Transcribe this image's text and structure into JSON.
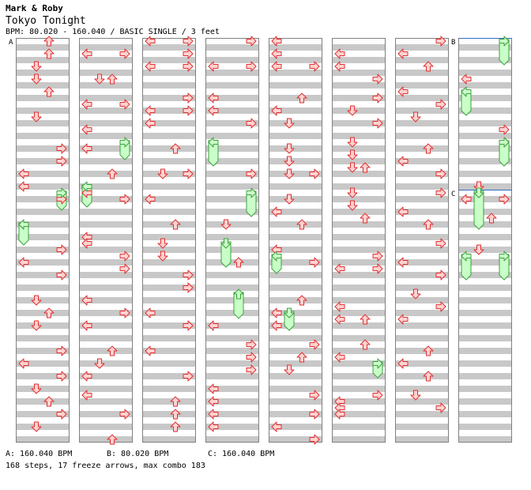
{
  "header": {
    "artist": "Mark & Roby",
    "title": "Tokyo Tonight",
    "bpm_line": "BPM: 80.020 - 160.040 / BASIC SINGLE / 3 feet"
  },
  "markers": [
    {
      "label": "A",
      "column": 0,
      "measure": 0
    },
    {
      "label": "B",
      "column": 7,
      "measure": 0
    },
    {
      "label": "C",
      "column": 7,
      "measure": 3
    }
  ],
  "legend": {
    "a": "A: 160.040 BPM",
    "b": "B: 80.020 BPM",
    "c": "C: 160.040 BPM"
  },
  "stats": "168 steps, 17 freeze arrows, max combo 183",
  "colors": {
    "band": "#c8c8c8",
    "arrow_fill": "#ffd2d2",
    "arrow_stroke": "#e03030",
    "freeze_fill": "#c8ffc8",
    "freeze_stroke": "#40a040",
    "marker_line": "#3070c0"
  },
  "notes": [
    {
      "c": 0,
      "m": 0,
      "b": 0,
      "d": "U"
    },
    {
      "c": 0,
      "m": 0,
      "b": 2,
      "d": "U"
    },
    {
      "c": 0,
      "m": 0,
      "b": 4,
      "d": "D"
    },
    {
      "c": 0,
      "m": 0,
      "b": 6,
      "d": "D"
    },
    {
      "c": 0,
      "m": 1,
      "b": 0,
      "d": "U"
    },
    {
      "c": 0,
      "m": 1,
      "b": 4,
      "d": "D"
    },
    {
      "c": 0,
      "m": 2,
      "b": 1,
      "d": "R"
    },
    {
      "c": 0,
      "m": 2,
      "b": 3,
      "d": "R"
    },
    {
      "c": 0,
      "m": 2,
      "b": 5,
      "d": "L"
    },
    {
      "c": 0,
      "m": 2,
      "b": 7,
      "d": "L"
    },
    {
      "c": 0,
      "m": 3,
      "b": 1,
      "d": "R"
    },
    {
      "c": 0,
      "m": 3,
      "b": 5,
      "d": "L"
    },
    {
      "c": 0,
      "m": 4,
      "b": 1,
      "d": "R"
    },
    {
      "c": 0,
      "m": 4,
      "b": 3,
      "d": "L"
    },
    {
      "c": 0,
      "m": 4,
      "b": 5,
      "d": "R"
    },
    {
      "c": 0,
      "m": 5,
      "b": 1,
      "d": "D"
    },
    {
      "c": 0,
      "m": 5,
      "b": 3,
      "d": "U"
    },
    {
      "c": 0,
      "m": 5,
      "b": 5,
      "d": "D"
    },
    {
      "c": 0,
      "m": 6,
      "b": 1,
      "d": "R"
    },
    {
      "c": 0,
      "m": 6,
      "b": 3,
      "d": "L"
    },
    {
      "c": 0,
      "m": 6,
      "b": 5,
      "d": "R"
    },
    {
      "c": 0,
      "m": 6,
      "b": 7,
      "d": "D"
    },
    {
      "c": 0,
      "m": 7,
      "b": 1,
      "d": "U"
    },
    {
      "c": 0,
      "m": 7,
      "b": 3,
      "d": "R"
    },
    {
      "c": 0,
      "m": 7,
      "b": 5,
      "d": "D"
    },
    {
      "c": 1,
      "m": 0,
      "b": 2,
      "d": "L"
    },
    {
      "c": 1,
      "m": 0,
      "b": 2,
      "d": "R"
    },
    {
      "c": 1,
      "m": 0,
      "b": 6,
      "d": "D"
    },
    {
      "c": 1,
      "m": 0,
      "b": 6,
      "d": "U"
    },
    {
      "c": 1,
      "m": 1,
      "b": 2,
      "d": "L"
    },
    {
      "c": 1,
      "m": 1,
      "b": 2,
      "d": "R"
    },
    {
      "c": 1,
      "m": 1,
      "b": 6,
      "d": "L"
    },
    {
      "c": 1,
      "m": 2,
      "b": 1,
      "d": "L"
    },
    {
      "c": 1,
      "m": 2,
      "b": 5,
      "d": "U"
    },
    {
      "c": 1,
      "m": 3,
      "b": 0,
      "d": "L"
    },
    {
      "c": 1,
      "m": 3,
      "b": 1,
      "d": "R"
    },
    {
      "c": 1,
      "m": 3,
      "b": 7,
      "d": "L"
    },
    {
      "c": 1,
      "m": 4,
      "b": 0,
      "d": "L"
    },
    {
      "c": 1,
      "m": 4,
      "b": 2,
      "d": "R"
    },
    {
      "c": 1,
      "m": 4,
      "b": 4,
      "d": "R"
    },
    {
      "c": 1,
      "m": 5,
      "b": 1,
      "d": "L"
    },
    {
      "c": 1,
      "m": 5,
      "b": 3,
      "d": "R"
    },
    {
      "c": 1,
      "m": 5,
      "b": 5,
      "d": "L"
    },
    {
      "c": 1,
      "m": 6,
      "b": 1,
      "d": "U"
    },
    {
      "c": 1,
      "m": 6,
      "b": 3,
      "d": "D"
    },
    {
      "c": 1,
      "m": 6,
      "b": 5,
      "d": "L"
    },
    {
      "c": 1,
      "m": 7,
      "b": 0,
      "d": "L"
    },
    {
      "c": 1,
      "m": 7,
      "b": 3,
      "d": "R"
    },
    {
      "c": 1,
      "m": 7,
      "b": 7,
      "d": "U"
    },
    {
      "c": 2,
      "m": 0,
      "b": 0,
      "d": "L"
    },
    {
      "c": 2,
      "m": 0,
      "b": 0,
      "d": "R"
    },
    {
      "c": 2,
      "m": 0,
      "b": 2,
      "d": "R"
    },
    {
      "c": 2,
      "m": 0,
      "b": 4,
      "d": "L"
    },
    {
      "c": 2,
      "m": 0,
      "b": 4,
      "d": "R"
    },
    {
      "c": 2,
      "m": 1,
      "b": 1,
      "d": "R"
    },
    {
      "c": 2,
      "m": 1,
      "b": 3,
      "d": "L"
    },
    {
      "c": 2,
      "m": 1,
      "b": 3,
      "d": "R"
    },
    {
      "c": 2,
      "m": 1,
      "b": 5,
      "d": "L"
    },
    {
      "c": 2,
      "m": 2,
      "b": 1,
      "d": "U"
    },
    {
      "c": 2,
      "m": 2,
      "b": 5,
      "d": "D"
    },
    {
      "c": 2,
      "m": 2,
      "b": 5,
      "d": "R"
    },
    {
      "c": 2,
      "m": 3,
      "b": 1,
      "d": "L"
    },
    {
      "c": 2,
      "m": 3,
      "b": 5,
      "d": "U"
    },
    {
      "c": 2,
      "m": 4,
      "b": 0,
      "d": "D"
    },
    {
      "c": 2,
      "m": 4,
      "b": 2,
      "d": "D"
    },
    {
      "c": 2,
      "m": 4,
      "b": 5,
      "d": "R"
    },
    {
      "c": 2,
      "m": 4,
      "b": 7,
      "d": "R"
    },
    {
      "c": 2,
      "m": 5,
      "b": 3,
      "d": "L"
    },
    {
      "c": 2,
      "m": 5,
      "b": 5,
      "d": "R"
    },
    {
      "c": 2,
      "m": 6,
      "b": 1,
      "d": "L"
    },
    {
      "c": 2,
      "m": 6,
      "b": 5,
      "d": "R"
    },
    {
      "c": 2,
      "m": 7,
      "b": 1,
      "d": "U"
    },
    {
      "c": 2,
      "m": 7,
      "b": 3,
      "d": "U"
    },
    {
      "c": 2,
      "m": 7,
      "b": 5,
      "d": "U"
    },
    {
      "c": 3,
      "m": 0,
      "b": 0,
      "d": "R"
    },
    {
      "c": 3,
      "m": 0,
      "b": 4,
      "d": "L"
    },
    {
      "c": 3,
      "m": 0,
      "b": 4,
      "d": "R"
    },
    {
      "c": 3,
      "m": 1,
      "b": 1,
      "d": "L"
    },
    {
      "c": 3,
      "m": 1,
      "b": 3,
      "d": "L"
    },
    {
      "c": 3,
      "m": 1,
      "b": 5,
      "d": "R"
    },
    {
      "c": 3,
      "m": 2,
      "b": 5,
      "d": "R"
    },
    {
      "c": 3,
      "m": 3,
      "b": 5,
      "d": "D"
    },
    {
      "c": 3,
      "m": 4,
      "b": 3,
      "d": "U"
    },
    {
      "c": 3,
      "m": 5,
      "b": 5,
      "d": "L"
    },
    {
      "c": 3,
      "m": 6,
      "b": 0,
      "d": "R"
    },
    {
      "c": 3,
      "m": 6,
      "b": 2,
      "d": "R"
    },
    {
      "c": 3,
      "m": 6,
      "b": 4,
      "d": "R"
    },
    {
      "c": 3,
      "m": 6,
      "b": 7,
      "d": "L"
    },
    {
      "c": 3,
      "m": 7,
      "b": 1,
      "d": "L"
    },
    {
      "c": 3,
      "m": 7,
      "b": 3,
      "d": "L"
    },
    {
      "c": 3,
      "m": 7,
      "b": 5,
      "d": "L"
    },
    {
      "c": 4,
      "m": 0,
      "b": 0,
      "d": "L"
    },
    {
      "c": 4,
      "m": 0,
      "b": 2,
      "d": "L"
    },
    {
      "c": 4,
      "m": 0,
      "b": 4,
      "d": "L"
    },
    {
      "c": 4,
      "m": 0,
      "b": 4,
      "d": "R"
    },
    {
      "c": 4,
      "m": 1,
      "b": 1,
      "d": "U"
    },
    {
      "c": 4,
      "m": 1,
      "b": 3,
      "d": "L"
    },
    {
      "c": 4,
      "m": 1,
      "b": 5,
      "d": "D"
    },
    {
      "c": 4,
      "m": 2,
      "b": 1,
      "d": "D"
    },
    {
      "c": 4,
      "m": 2,
      "b": 3,
      "d": "D"
    },
    {
      "c": 4,
      "m": 2,
      "b": 5,
      "d": "D"
    },
    {
      "c": 4,
      "m": 2,
      "b": 5,
      "d": "R"
    },
    {
      "c": 4,
      "m": 3,
      "b": 1,
      "d": "D"
    },
    {
      "c": 4,
      "m": 3,
      "b": 3,
      "d": "L"
    },
    {
      "c": 4,
      "m": 3,
      "b": 5,
      "d": "U"
    },
    {
      "c": 4,
      "m": 4,
      "b": 1,
      "d": "L"
    },
    {
      "c": 4,
      "m": 4,
      "b": 3,
      "d": "R"
    },
    {
      "c": 4,
      "m": 5,
      "b": 1,
      "d": "U"
    },
    {
      "c": 4,
      "m": 5,
      "b": 3,
      "d": "L"
    },
    {
      "c": 4,
      "m": 5,
      "b": 5,
      "d": "L"
    },
    {
      "c": 4,
      "m": 6,
      "b": 0,
      "d": "R"
    },
    {
      "c": 4,
      "m": 6,
      "b": 2,
      "d": "U"
    },
    {
      "c": 4,
      "m": 6,
      "b": 4,
      "d": "D"
    },
    {
      "c": 4,
      "m": 7,
      "b": 0,
      "d": "R"
    },
    {
      "c": 4,
      "m": 7,
      "b": 3,
      "d": "R"
    },
    {
      "c": 4,
      "m": 7,
      "b": 5,
      "d": "L"
    },
    {
      "c": 4,
      "m": 7,
      "b": 7,
      "d": "R"
    },
    {
      "c": 5,
      "m": 0,
      "b": 2,
      "d": "L"
    },
    {
      "c": 5,
      "m": 0,
      "b": 4,
      "d": "L"
    },
    {
      "c": 5,
      "m": 0,
      "b": 6,
      "d": "R"
    },
    {
      "c": 5,
      "m": 1,
      "b": 1,
      "d": "R"
    },
    {
      "c": 5,
      "m": 1,
      "b": 3,
      "d": "D"
    },
    {
      "c": 5,
      "m": 1,
      "b": 5,
      "d": "R"
    },
    {
      "c": 5,
      "m": 2,
      "b": 0,
      "d": "D"
    },
    {
      "c": 5,
      "m": 2,
      "b": 2,
      "d": "D"
    },
    {
      "c": 5,
      "m": 2,
      "b": 4,
      "d": "D"
    },
    {
      "c": 5,
      "m": 2,
      "b": 4,
      "d": "U"
    },
    {
      "c": 5,
      "m": 3,
      "b": 0,
      "d": "D"
    },
    {
      "c": 5,
      "m": 3,
      "b": 2,
      "d": "D"
    },
    {
      "c": 5,
      "m": 3,
      "b": 4,
      "d": "U"
    },
    {
      "c": 5,
      "m": 4,
      "b": 2,
      "d": "R"
    },
    {
      "c": 5,
      "m": 4,
      "b": 4,
      "d": "L"
    },
    {
      "c": 5,
      "m": 4,
      "b": 4,
      "d": "R"
    },
    {
      "c": 5,
      "m": 5,
      "b": 2,
      "d": "L"
    },
    {
      "c": 5,
      "m": 5,
      "b": 4,
      "d": "L"
    },
    {
      "c": 5,
      "m": 5,
      "b": 4,
      "d": "U"
    },
    {
      "c": 5,
      "m": 6,
      "b": 0,
      "d": "U"
    },
    {
      "c": 5,
      "m": 6,
      "b": 2,
      "d": "L"
    },
    {
      "c": 5,
      "m": 7,
      "b": 0,
      "d": "R"
    },
    {
      "c": 5,
      "m": 7,
      "b": 1,
      "d": "L"
    },
    {
      "c": 5,
      "m": 7,
      "b": 2,
      "d": "L"
    },
    {
      "c": 5,
      "m": 7,
      "b": 3,
      "d": "L"
    },
    {
      "c": 6,
      "m": 0,
      "b": 0,
      "d": "R"
    },
    {
      "c": 6,
      "m": 0,
      "b": 2,
      "d": "L"
    },
    {
      "c": 6,
      "m": 0,
      "b": 4,
      "d": "U"
    },
    {
      "c": 6,
      "m": 1,
      "b": 0,
      "d": "L"
    },
    {
      "c": 6,
      "m": 1,
      "b": 2,
      "d": "R"
    },
    {
      "c": 6,
      "m": 1,
      "b": 4,
      "d": "D"
    },
    {
      "c": 6,
      "m": 2,
      "b": 1,
      "d": "U"
    },
    {
      "c": 6,
      "m": 2,
      "b": 3,
      "d": "L"
    },
    {
      "c": 6,
      "m": 2,
      "b": 5,
      "d": "R"
    },
    {
      "c": 6,
      "m": 3,
      "b": 0,
      "d": "R"
    },
    {
      "c": 6,
      "m": 3,
      "b": 3,
      "d": "L"
    },
    {
      "c": 6,
      "m": 3,
      "b": 5,
      "d": "U"
    },
    {
      "c": 6,
      "m": 4,
      "b": 0,
      "d": "R"
    },
    {
      "c": 6,
      "m": 4,
      "b": 3,
      "d": "L"
    },
    {
      "c": 6,
      "m": 4,
      "b": 5,
      "d": "R"
    },
    {
      "c": 6,
      "m": 5,
      "b": 0,
      "d": "D"
    },
    {
      "c": 6,
      "m": 5,
      "b": 2,
      "d": "R"
    },
    {
      "c": 6,
      "m": 5,
      "b": 4,
      "d": "L"
    },
    {
      "c": 6,
      "m": 6,
      "b": 1,
      "d": "U"
    },
    {
      "c": 6,
      "m": 6,
      "b": 3,
      "d": "L"
    },
    {
      "c": 6,
      "m": 6,
      "b": 5,
      "d": "U"
    },
    {
      "c": 6,
      "m": 7,
      "b": 0,
      "d": "D"
    },
    {
      "c": 6,
      "m": 7,
      "b": 2,
      "d": "R"
    },
    {
      "c": 7,
      "m": 0,
      "b": 6,
      "d": "L"
    },
    {
      "c": 7,
      "m": 1,
      "b": 6,
      "d": "R"
    },
    {
      "c": 7,
      "m": 2,
      "b": 0,
      "d": "R"
    },
    {
      "c": 7,
      "m": 2,
      "b": 7,
      "d": "D"
    },
    {
      "c": 7,
      "m": 3,
      "b": 0,
      "d": "D"
    },
    {
      "c": 7,
      "m": 3,
      "b": 1,
      "d": "L"
    },
    {
      "c": 7,
      "m": 3,
      "b": 1,
      "d": "R"
    },
    {
      "c": 7,
      "m": 3,
      "b": 4,
      "d": "U"
    },
    {
      "c": 7,
      "m": 4,
      "b": 1,
      "d": "D"
    }
  ],
  "freezes": [
    {
      "c": 0,
      "m": 3,
      "b1": 5,
      "b2": 7,
      "d": "L"
    },
    {
      "c": 0,
      "m": 3,
      "b1": 0,
      "b2": 1.5,
      "d": "R"
    },
    {
      "c": 1,
      "m": 2,
      "b1": 0,
      "b2": 1.5,
      "d": "R"
    },
    {
      "c": 1,
      "m": 3,
      "b1": -1,
      "b2": 1,
      "d": "L"
    },
    {
      "c": 3,
      "m": 2,
      "b1": 0,
      "b2": 2.5,
      "d": "L"
    },
    {
      "c": 3,
      "m": 3,
      "b1": 0,
      "b2": 2.5,
      "d": "R"
    },
    {
      "c": 3,
      "m": 4,
      "b1": 0,
      "b2": 2.5,
      "d": "D"
    },
    {
      "c": 3,
      "m": 5,
      "b1": 0,
      "b2": 2.6,
      "d": "U"
    },
    {
      "c": 4,
      "m": 4,
      "b1": 2,
      "b2": 3.5,
      "d": "L"
    },
    {
      "c": 4,
      "m": 5,
      "b1": 3,
      "b2": 4.5,
      "d": "D"
    },
    {
      "c": 5,
      "m": 6,
      "b1": 3,
      "b2": 4,
      "d": "R"
    },
    {
      "c": 7,
      "m": 0,
      "b1": 0,
      "b2": 2.5,
      "d": "R"
    },
    {
      "c": 7,
      "m": 1,
      "b1": 0,
      "b2": 2.5,
      "d": "L"
    },
    {
      "c": 7,
      "m": 2,
      "b1": 0,
      "b2": 2.5,
      "d": "R"
    },
    {
      "c": 7,
      "m": 3,
      "b1": 0,
      "b2": 4.5,
      "d": "D"
    },
    {
      "c": 7,
      "m": 4,
      "b1": 2,
      "b2": 4.5,
      "d": "L"
    },
    {
      "c": 7,
      "m": 4,
      "b1": 2,
      "b2": 4.5,
      "d": "R"
    }
  ]
}
